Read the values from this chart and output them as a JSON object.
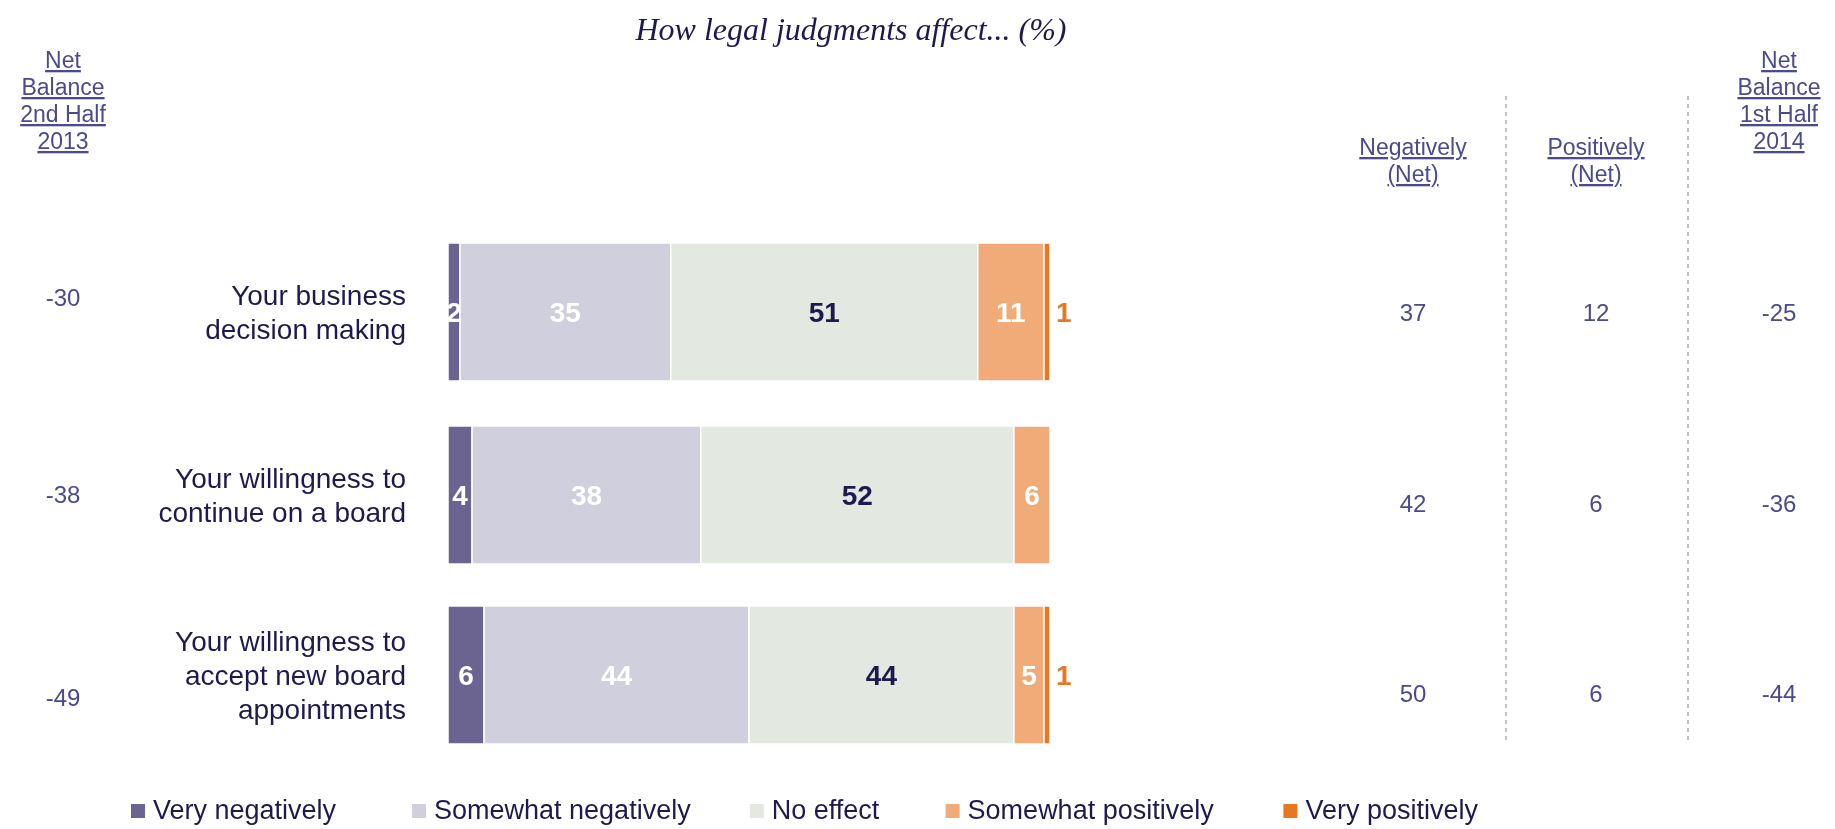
{
  "chart_data": [
    {
      "type": "bar",
      "orientation": "horizontal",
      "stacked": true,
      "title": "How legal judgments affect... (%)",
      "categories": [
        "Your business decision making",
        "Your willingness to continue on a board",
        "Your willingness to accept new board appointments"
      ],
      "data_labels": true,
      "legend": "bottom",
      "series": [
        {
          "name": "Very negatively",
          "color": "#6b6490",
          "values": [
            2,
            4,
            6
          ]
        },
        {
          "name": "Somewhat negatively",
          "color": "#d0cfdd",
          "values": [
            35,
            38,
            44
          ]
        },
        {
          "name": "No effect",
          "color": "#e3e8e1",
          "values": [
            51,
            52,
            44
          ]
        },
        {
          "name": "Somewhat positively",
          "color": "#f0ab78",
          "values": [
            11,
            6,
            5
          ]
        },
        {
          "name": "Very positively",
          "color": "#e87722",
          "values": [
            1,
            null,
            1
          ]
        }
      ]
    },
    {
      "type": "heatmap",
      "data_labels": true,
      "categories": [
        "Net Balance 2nd Half 2013"
      ],
      "y_categories": [
        null,
        null,
        null
      ],
      "cells": [
        [
          -30
        ],
        [
          -38
        ],
        [
          -49
        ]
      ]
    },
    {
      "type": "heatmap",
      "data_labels": true,
      "categories": [
        "Negatively (Net)",
        "Positively (Net)",
        "Net Balance 1st Half 2014"
      ],
      "y_categories": [
        null,
        null,
        null
      ],
      "cells": [
        [
          37,
          12,
          -25
        ],
        [
          42,
          6,
          -36
        ],
        [
          50,
          6,
          -44
        ]
      ]
    }
  ]
}
